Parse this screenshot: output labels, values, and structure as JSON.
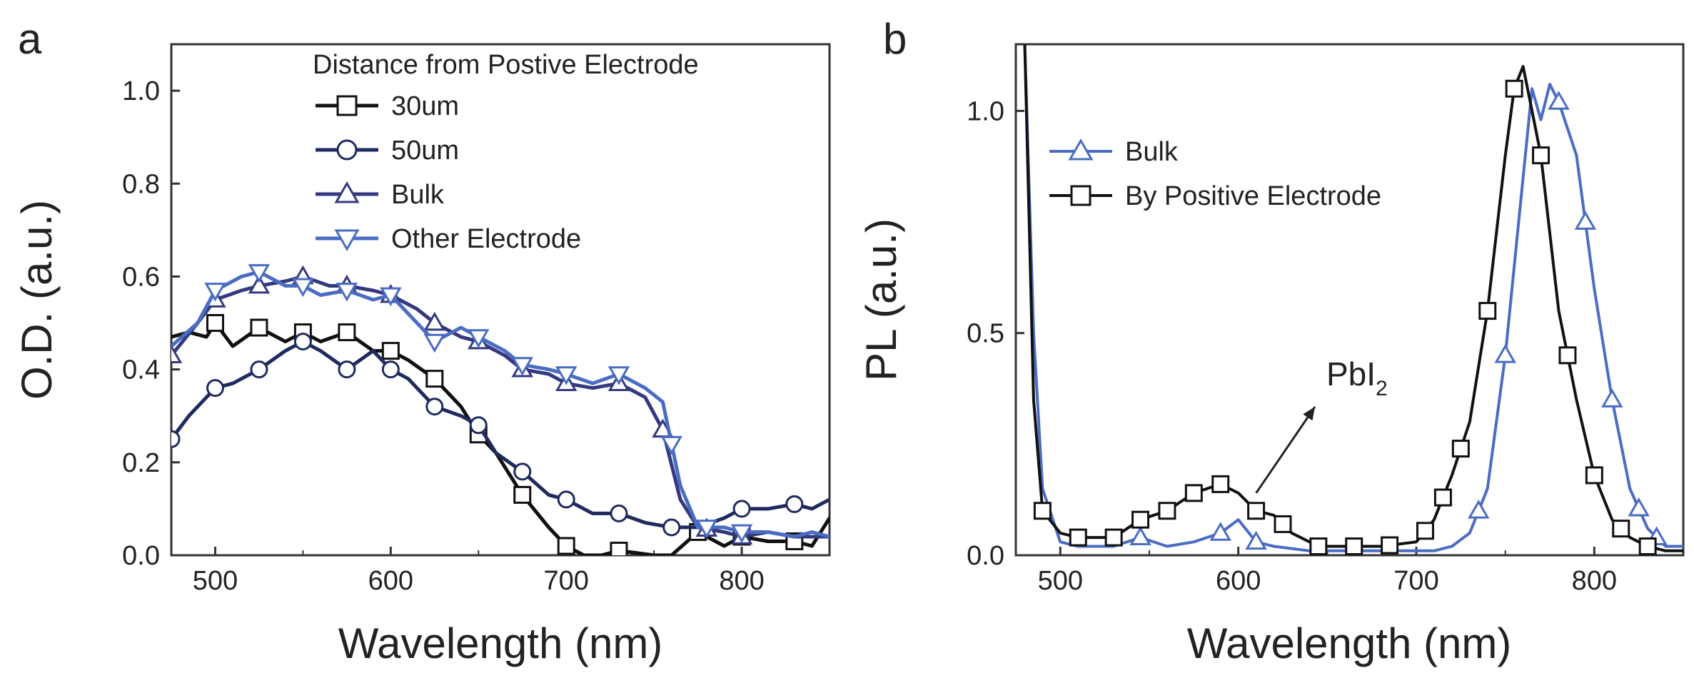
{
  "chart_data": [
    {
      "type": "line",
      "panel_label": "a",
      "xlabel": "Wavelength (nm)",
      "ylabel": "O.D. (a.u.)",
      "xlim": [
        475,
        850
      ],
      "ylim": [
        0.0,
        1.1
      ],
      "xticks": [
        500,
        600,
        700,
        800
      ],
      "yticks": [
        0.0,
        0.2,
        0.4,
        0.6,
        0.8,
        1.0
      ],
      "xtick_labels": [
        "500",
        "600",
        "700",
        "800"
      ],
      "ytick_labels": [
        "0.0",
        "0.2",
        "0.4",
        "0.6",
        "0.8",
        "1.0"
      ],
      "grid": false,
      "legend_title": "Distance from Postive Electrode",
      "legend_position": "top-right",
      "series": [
        {
          "name": "30um",
          "color": "#111111",
          "marker": "square",
          "x": [
            475,
            485,
            495,
            500,
            510,
            525,
            540,
            550,
            560,
            575,
            590,
            600,
            610,
            625,
            640,
            650,
            660,
            675,
            690,
            700,
            710,
            720,
            730,
            750,
            760,
            775,
            790,
            800,
            815,
            830,
            840,
            850
          ],
          "y": [
            0.47,
            0.48,
            0.47,
            0.5,
            0.45,
            0.49,
            0.46,
            0.48,
            0.46,
            0.48,
            0.44,
            0.44,
            0.42,
            0.38,
            0.32,
            0.26,
            0.22,
            0.13,
            0.06,
            0.02,
            0.0,
            0.0,
            0.01,
            0.0,
            0.0,
            0.05,
            0.02,
            0.04,
            0.03,
            0.03,
            0.02,
            0.08
          ],
          "marker_x": [
            500,
            525,
            550,
            575,
            600,
            625,
            650,
            675,
            700,
            730,
            775,
            800,
            830
          ]
        },
        {
          "name": "50um",
          "color": "#1f2a5e",
          "marker": "circle",
          "x": [
            475,
            485,
            500,
            510,
            525,
            540,
            550,
            560,
            575,
            590,
            600,
            610,
            625,
            640,
            650,
            660,
            675,
            690,
            700,
            715,
            730,
            745,
            760,
            775,
            790,
            800,
            815,
            830,
            840,
            850
          ],
          "y": [
            0.25,
            0.3,
            0.36,
            0.37,
            0.4,
            0.44,
            0.46,
            0.44,
            0.4,
            0.44,
            0.4,
            0.38,
            0.32,
            0.3,
            0.28,
            0.22,
            0.18,
            0.13,
            0.12,
            0.09,
            0.09,
            0.07,
            0.06,
            0.06,
            0.08,
            0.1,
            0.1,
            0.11,
            0.1,
            0.12
          ],
          "marker_x": [
            475,
            500,
            525,
            550,
            575,
            600,
            625,
            650,
            675,
            700,
            730,
            760,
            800,
            830
          ]
        },
        {
          "name": "Bulk",
          "color": "#34397f",
          "marker": "triangle-up",
          "x": [
            475,
            490,
            500,
            515,
            525,
            540,
            550,
            565,
            575,
            590,
            600,
            615,
            625,
            640,
            650,
            665,
            675,
            690,
            700,
            715,
            730,
            745,
            755,
            765,
            775,
            790,
            800,
            815,
            830,
            840,
            850
          ],
          "y": [
            0.43,
            0.5,
            0.55,
            0.57,
            0.58,
            0.59,
            0.6,
            0.58,
            0.58,
            0.57,
            0.56,
            0.53,
            0.5,
            0.47,
            0.46,
            0.43,
            0.4,
            0.39,
            0.37,
            0.36,
            0.37,
            0.34,
            0.27,
            0.12,
            0.06,
            0.05,
            0.04,
            0.05,
            0.04,
            0.04,
            0.04
          ],
          "marker_x": [
            475,
            500,
            525,
            550,
            575,
            600,
            625,
            650,
            675,
            700,
            730,
            755,
            780,
            800
          ]
        },
        {
          "name": "Other Electrode",
          "color": "#4a6cc2",
          "marker": "triangle-down",
          "x": [
            475,
            490,
            500,
            515,
            525,
            540,
            550,
            560,
            575,
            590,
            600,
            610,
            625,
            640,
            650,
            665,
            675,
            690,
            700,
            715,
            730,
            745,
            755,
            765,
            775,
            790,
            800,
            815,
            830,
            840,
            850
          ],
          "y": [
            0.45,
            0.5,
            0.57,
            0.6,
            0.61,
            0.58,
            0.58,
            0.56,
            0.57,
            0.55,
            0.56,
            0.52,
            0.46,
            0.49,
            0.47,
            0.44,
            0.41,
            0.4,
            0.39,
            0.37,
            0.39,
            0.36,
            0.33,
            0.15,
            0.06,
            0.06,
            0.05,
            0.05,
            0.04,
            0.05,
            0.04
          ],
          "marker_x": [
            500,
            525,
            550,
            575,
            600,
            625,
            650,
            675,
            700,
            730,
            760,
            780,
            800
          ]
        }
      ]
    },
    {
      "type": "line",
      "panel_label": "b",
      "xlabel": "Wavelength (nm)",
      "ylabel": "PL (a.u.)",
      "xlim": [
        475,
        850
      ],
      "ylim": [
        0.0,
        1.15
      ],
      "xticks": [
        500,
        600,
        700,
        800
      ],
      "yticks": [
        0.0,
        0.5,
        1.0
      ],
      "xtick_labels": [
        "500",
        "600",
        "700",
        "800"
      ],
      "ytick_labels": [
        "0.0",
        "0.5",
        "1.0"
      ],
      "grid": false,
      "legend_position": "upper-left",
      "annotation": {
        "text": "PbI",
        "subscript": "2",
        "arrow_to": [
          610,
          0.14
        ]
      },
      "series": [
        {
          "name": "Bulk",
          "color": "#4a6cc2",
          "marker": "triangle-up",
          "x": [
            480,
            485,
            490,
            500,
            510,
            520,
            530,
            545,
            560,
            575,
            590,
            600,
            610,
            620,
            640,
            660,
            680,
            700,
            710,
            720,
            730,
            740,
            750,
            760,
            765,
            770,
            775,
            780,
            790,
            800,
            810,
            820,
            830,
            840,
            850
          ],
          "y": [
            1.15,
            0.5,
            0.15,
            0.03,
            0.02,
            0.02,
            0.02,
            0.04,
            0.02,
            0.03,
            0.05,
            0.08,
            0.03,
            0.02,
            0.01,
            0.01,
            0.01,
            0.01,
            0.01,
            0.02,
            0.05,
            0.15,
            0.45,
            0.85,
            1.05,
            0.98,
            1.06,
            1.02,
            0.9,
            0.6,
            0.35,
            0.15,
            0.06,
            0.02,
            0.02
          ],
          "marker_x": [
            545,
            590,
            610,
            735,
            750,
            780,
            795,
            810,
            825,
            835
          ]
        },
        {
          "name": "By Positive Electrode",
          "color": "#111111",
          "marker": "square",
          "x": [
            480,
            485,
            490,
            500,
            510,
            520,
            530,
            545,
            560,
            575,
            590,
            600,
            610,
            620,
            630,
            645,
            660,
            680,
            700,
            710,
            720,
            730,
            740,
            750,
            755,
            760,
            765,
            770,
            780,
            790,
            800,
            810,
            820,
            830,
            840,
            850
          ],
          "y": [
            1.15,
            0.35,
            0.1,
            0.05,
            0.04,
            0.04,
            0.04,
            0.08,
            0.1,
            0.14,
            0.16,
            0.14,
            0.1,
            0.09,
            0.05,
            0.02,
            0.02,
            0.02,
            0.03,
            0.08,
            0.18,
            0.3,
            0.55,
            0.9,
            1.05,
            1.1,
            1.0,
            0.9,
            0.55,
            0.35,
            0.18,
            0.08,
            0.04,
            0.02,
            0.01,
            0.01
          ],
          "marker_x": [
            490,
            510,
            530,
            545,
            560,
            575,
            590,
            610,
            625,
            645,
            665,
            685,
            705,
            715,
            725,
            740,
            755,
            770,
            785,
            800,
            815,
            830
          ]
        }
      ]
    }
  ]
}
